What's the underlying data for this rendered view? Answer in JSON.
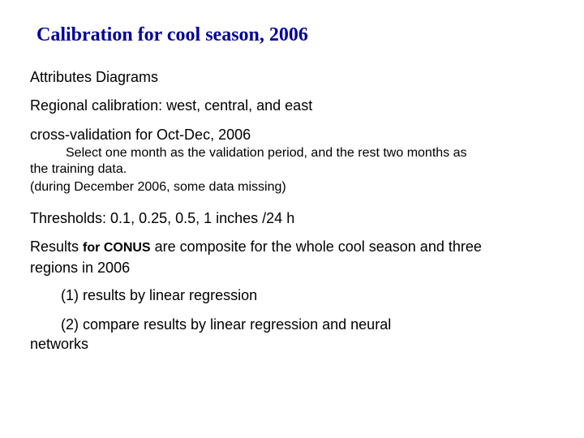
{
  "title": "Calibration for cool season, 2006",
  "colors": {
    "title": "#000099",
    "text": "#000000",
    "background": "#ffffff"
  },
  "body": {
    "attributes": "Attributes Diagrams",
    "regional": "Regional calibration: west, central, and east",
    "cross_validation": "cross-validation for Oct-Dec, 2006",
    "select_month": "Select one month as the validation period, and the rest two months as the training data.",
    "during_december": "(during December 2006, some data missing)",
    "thresholds": "Thresholds: 0.1, 0.25, 0.5, 1 inches /24 h",
    "results_prefix": "Results",
    "results_bold": "for CONUS",
    "results_rest": "are composite for the whole cool season and three regions in 2006",
    "result1": "(1) results by linear regression",
    "result2": "(2) compare results by linear regression and neural networks"
  }
}
